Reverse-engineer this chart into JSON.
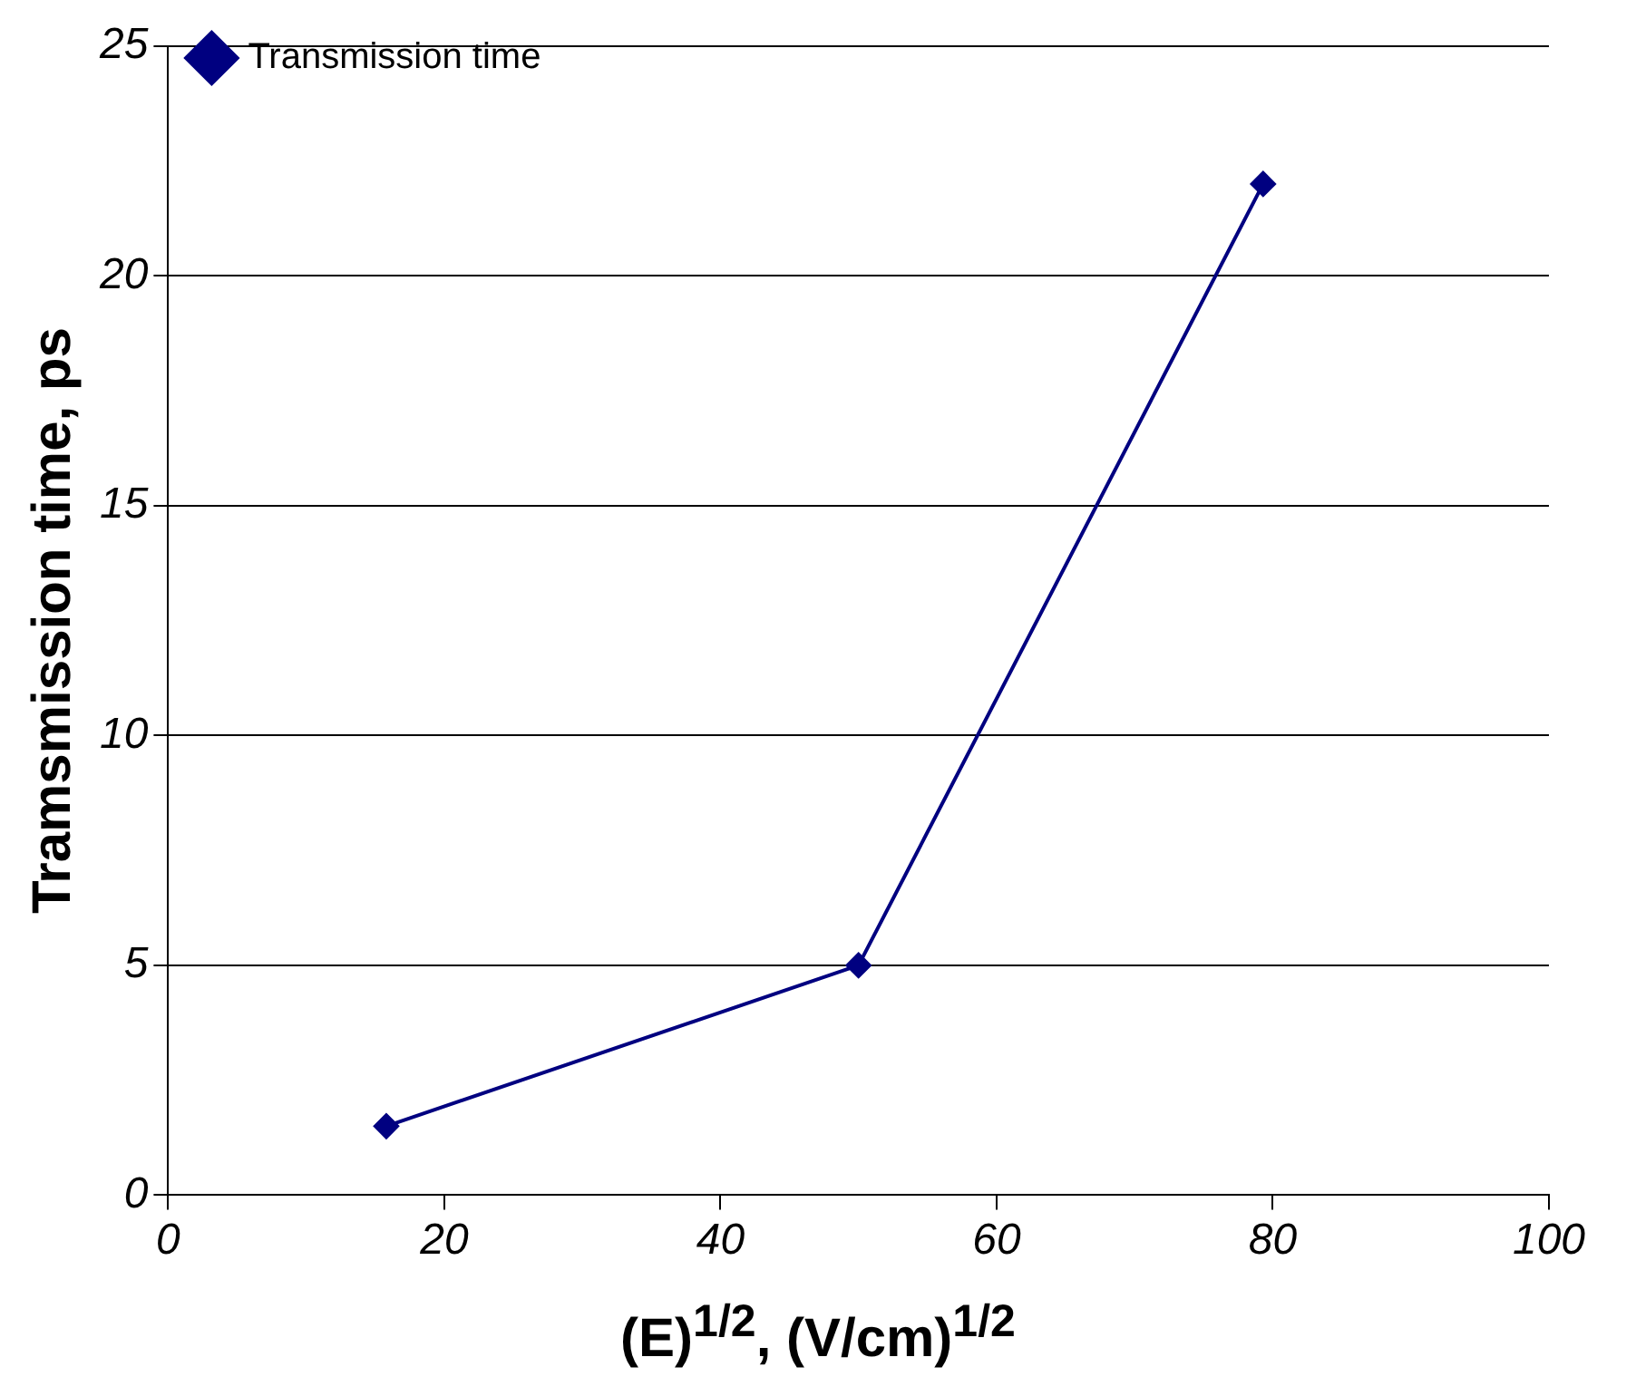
{
  "chart_data": {
    "type": "line",
    "xlabel": "(E)$^{1/2}$, (V/cm)$^{1/2}$",
    "ylabel": "Tramsmission time, ps",
    "x": [
      15.8,
      50,
      79.3
    ],
    "series": [
      {
        "name": "Transmission time",
        "color": "#000080",
        "values": [
          1.5,
          5,
          22
        ]
      }
    ],
    "xlim": [
      0,
      100
    ],
    "xticks": [
      0,
      20,
      40,
      60,
      80,
      100
    ],
    "ylim": [
      0,
      25
    ],
    "yticks": [
      0,
      5,
      10,
      15,
      20,
      25
    ],
    "grid": "y",
    "legend": "top left",
    "marker": "diamond",
    "line_style": "solid"
  }
}
